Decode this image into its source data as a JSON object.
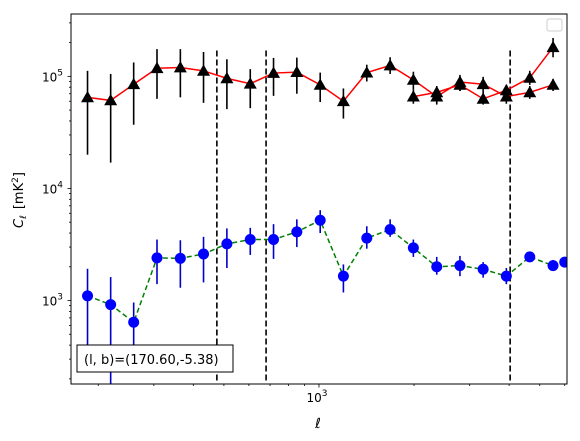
{
  "chart_data": {
    "type": "line",
    "xscale": "log",
    "yscale": "log",
    "xlabel": "ℓ",
    "ylabel_main": "C",
    "ylabel_sub": "ℓ",
    "ylabel_unit_open": "[mK",
    "ylabel_unit_sup": "2",
    "ylabel_unit_close": "]",
    "xlim": [
      164,
      6100
    ],
    "ylim": [
      180,
      360000
    ],
    "x_ticks": [
      {
        "value": 1000,
        "base": "10",
        "exp": "3"
      }
    ],
    "y_ticks": [
      {
        "value": 1000,
        "base": "10",
        "exp": "3"
      },
      {
        "value": 10000,
        "base": "10",
        "exp": "4"
      },
      {
        "value": 100000,
        "base": "10",
        "exp": "5"
      }
    ],
    "vlines": [
      475,
      680,
      4030
    ],
    "annotation": "(l, b)=(170.60,-5.38)",
    "legend_placement": "upper right",
    "series": [
      {
        "line_color": "#ff0000",
        "line_style": "solid",
        "marker": "triangle",
        "marker_color": "#000000",
        "error_color": "#000000",
        "x": [
          185,
          219,
          259,
          307,
          364,
          431,
          511,
          606,
          718,
          851,
          1009,
          1195,
          1417,
          1680,
          1990,
          2360,
          2795,
          3310,
          3920,
          4650,
          5510
        ],
        "y": [
          65000,
          61000,
          85000,
          118000,
          120000,
          112000,
          96000,
          86000,
          107000,
          109000,
          84000,
          60000,
          108000,
          125000,
          93000,
          66000,
          89000,
          85000,
          66000,
          72000,
          84000
        ],
        "y_low": [
          20000,
          17000,
          37000,
          63000,
          65000,
          58000,
          51000,
          52000,
          67000,
          70000,
          59000,
          42000,
          90000,
          105000,
          76000,
          56000,
          74000,
          71000,
          57000,
          63000,
          74000
        ],
        "y_high": [
          112000,
          105000,
          133000,
          175000,
          175000,
          165000,
          142000,
          116000,
          146000,
          147000,
          108000,
          78000,
          127000,
          148000,
          110000,
          77000,
          103000,
          99000,
          76000,
          82000,
          95000
        ]
      },
      {
        "line_color": "#ff0000",
        "line_style": "solid",
        "marker": "triangle",
        "marker_color": "#000000",
        "error_color": "#000000",
        "x": [
          1990,
          2360,
          2795,
          3310,
          3920,
          4650,
          5510
        ],
        "y": [
          66000,
          72000,
          84000,
          63000,
          75000,
          97000,
          182000
        ],
        "y_low": [
          57000,
          63000,
          74000,
          56000,
          66000,
          84000,
          148000
        ],
        "y_high": [
          76000,
          82000,
          95000,
          71000,
          84000,
          112000,
          220000
        ]
      },
      {
        "line_color": "#008000",
        "line_style": "dashed",
        "marker": "circle",
        "marker_color": "#0000ff",
        "error_color": "#0000cc",
        "x": [
          185,
          219,
          259,
          307,
          364,
          431,
          511,
          606,
          718,
          851,
          1009,
          1195,
          1417,
          1680,
          1990,
          2360,
          2795,
          3310,
          3920,
          4650,
          5510,
          6000
        ],
        "y": [
          1100,
          920,
          640,
          2400,
          2380,
          2600,
          3200,
          3500,
          3500,
          4100,
          5200,
          1650,
          3600,
          4300,
          2950,
          2000,
          2050,
          1900,
          1650,
          2450,
          2050,
          2200
        ],
        "y_low": [
          300,
          180,
          380,
          1400,
          1300,
          1450,
          1950,
          2550,
          2350,
          3000,
          4000,
          1180,
          2900,
          3700,
          2450,
          1700,
          1650,
          1600,
          1400,
          2250,
          1850,
          2000
        ],
        "y_high": [
          1920,
          1620,
          960,
          3500,
          3450,
          3700,
          4400,
          4450,
          4800,
          5300,
          6400,
          2100,
          4600,
          5300,
          3500,
          2450,
          2500,
          2200,
          1950,
          2700,
          2300,
          2400
        ]
      }
    ]
  }
}
